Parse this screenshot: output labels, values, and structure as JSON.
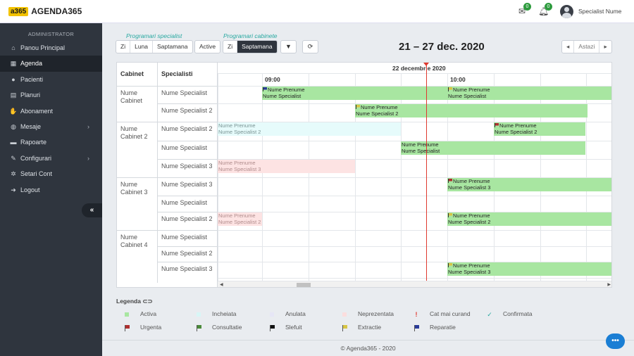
{
  "app": {
    "badge": "a365",
    "name": "AGENDA365"
  },
  "topbar": {
    "mail_count": "0",
    "bell_count": "0",
    "user_name": "Specialist Nume"
  },
  "sidebar": {
    "heading": "ADMINISTRATOR",
    "items": [
      {
        "label": "Panou Principal",
        "icon": "home-icon"
      },
      {
        "label": "Agenda",
        "icon": "calendar-icon",
        "active": true
      },
      {
        "label": "Pacienti",
        "icon": "user-icon"
      },
      {
        "label": "Planuri",
        "icon": "clipboard-icon"
      },
      {
        "label": "Abonament",
        "icon": "hand-icon"
      },
      {
        "label": "Mesaje",
        "icon": "chat-icon",
        "has_submenu": true
      },
      {
        "label": "Rapoarte",
        "icon": "folder-icon"
      },
      {
        "label": "Configurari",
        "icon": "wrench-icon",
        "has_submenu": true
      },
      {
        "label": "Setari Cont",
        "icon": "gear-icon"
      },
      {
        "label": "Logout",
        "icon": "logout-icon"
      }
    ],
    "collapse_glyph": "«"
  },
  "toolbar": {
    "specialist_label": "Programari specialist",
    "specialist_buttons": [
      "Zi",
      "Luna",
      "Saptamana"
    ],
    "active_label": "Active",
    "cabinet_label": "Programari cabinete",
    "cabinet_buttons": [
      "Zi",
      "Saptamana"
    ],
    "range_title": "21 – 27 dec. 2020",
    "today_label": "Astazi"
  },
  "schedule": {
    "col_cabinet": "Cabinet",
    "col_specialist": "Specialisti",
    "day_label": "22 decembrie 2020",
    "hours": [
      "09:00",
      "10:00"
    ],
    "cabinets": [
      {
        "name": "Nume Cabinet",
        "specialists": [
          "Nume Specialist",
          "Nume Specialist 2"
        ]
      },
      {
        "name": "Nume Cabinet 2",
        "specialists": [
          "Nume Specialist 2",
          "Nume Specialist",
          "Nume Specialist 3"
        ]
      },
      {
        "name": "Nume Cabinet 3",
        "specialists": [
          "Nume Specialist 3",
          "Nume Specialist",
          "Nume Specialist 2"
        ]
      },
      {
        "name": "Nume Cabinet 4",
        "specialists": [
          "Nume Specialist",
          "Nume Specialist 2",
          "Nume Specialist 3"
        ]
      }
    ],
    "events": [
      {
        "line1": "Nume Prenume",
        "line2": "Nume Specialist",
        "status": "green",
        "flag": "#2a3b9a"
      },
      {
        "line1": "Nume Prenume",
        "line2": "Nume Specialist",
        "status": "green",
        "flag": "#d7c545"
      },
      {
        "line1": "Nume Prenume",
        "line2": "Nume Specialist 2",
        "status": "green",
        "flag": "#d7c545"
      },
      {
        "line1": "Nume Prenume",
        "line2": "Nume Specialist 2",
        "status": "cyan",
        "flag": ""
      },
      {
        "line1": "Nume Prenume",
        "line2": "Nume Specialist 2",
        "status": "green",
        "flag": "#b03030"
      },
      {
        "line1": "Nume Prenume",
        "line2": "Nume Specialist",
        "status": "green",
        "flag": ""
      },
      {
        "line1": "Nume Prenume",
        "line2": "Nume Specialist 3",
        "status": "pink",
        "flag": ""
      },
      {
        "line1": "Nume Prenume",
        "line2": "Nume Specialist 3",
        "status": "green",
        "flag": "#b03030"
      },
      {
        "line1": "Nume Prenume",
        "line2": "Nume Specialist 2",
        "status": "pink",
        "flag": ""
      },
      {
        "line1": "Nume Prenume",
        "line2": "Nume Specialist 2",
        "status": "green",
        "flag": "#d7c545"
      },
      {
        "line1": "Nume Prenume",
        "line2": "Nume Specialist 3",
        "status": "green",
        "flag": "#d7c545"
      }
    ]
  },
  "legend": {
    "title": "Legenda",
    "items": [
      {
        "label": "Activa",
        "kind": "square",
        "color": "#a8e6a1"
      },
      {
        "label": "Incheiata",
        "kind": "square",
        "color": "#d8f6f6"
      },
      {
        "label": "Anulata",
        "kind": "square",
        "color": "#e6e6f6"
      },
      {
        "label": "Neprezentata",
        "kind": "square",
        "color": "#fbdede"
      },
      {
        "label": "Cat mai curand",
        "kind": "exclaim",
        "color": "#e0392f"
      },
      {
        "label": "Confirmata",
        "kind": "check",
        "color": "#27a8a0"
      },
      {
        "label": "Urgenta",
        "kind": "flag",
        "color": "#b03030"
      },
      {
        "label": "Consultatie",
        "kind": "flag",
        "color": "#4a8a3a"
      },
      {
        "label": "Slefuit",
        "kind": "flag",
        "color": "#111111"
      },
      {
        "label": "Extractie",
        "kind": "flag",
        "color": "#d7c545"
      },
      {
        "label": "Reparatie",
        "kind": "flag",
        "color": "#2a3b9a"
      }
    ]
  },
  "footer": {
    "text": "© Agenda365 - 2020"
  }
}
